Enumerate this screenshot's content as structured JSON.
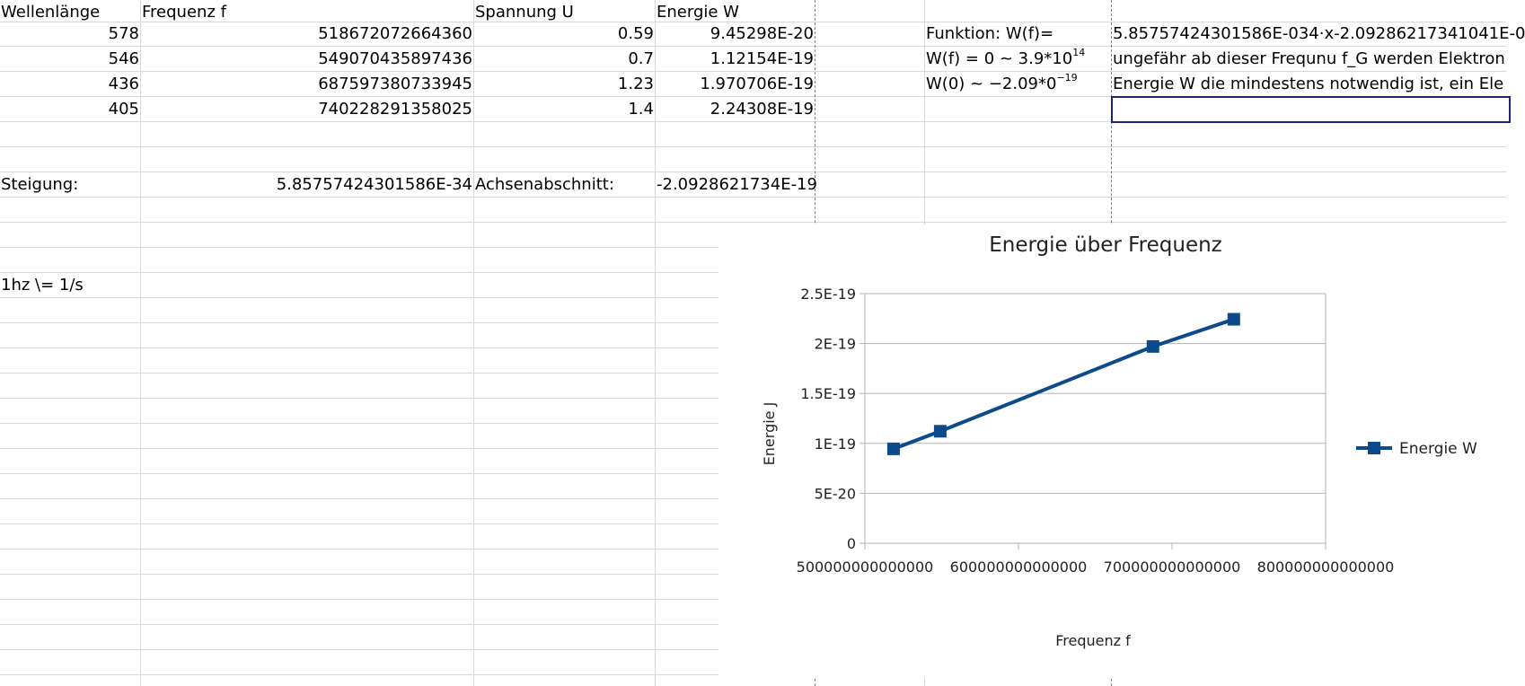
{
  "headers": {
    "col_a": "Wellenlänge",
    "col_b": "Frequenz f",
    "col_c": "Spannung U",
    "col_d": "Energie W"
  },
  "rows": [
    {
      "wavelength": "578",
      "frequency": "518672072664360",
      "voltage": "0.59",
      "energy": "9.45298E-20"
    },
    {
      "wavelength": "546",
      "frequency": "549070435897436",
      "voltage": "0.7",
      "energy": "1.12154E-19"
    },
    {
      "wavelength": "436",
      "frequency": "687597380733945",
      "voltage": "1.23",
      "energy": "1.970706E-19"
    },
    {
      "wavelength": "405",
      "frequency": "740228291358025",
      "voltage": "1.4",
      "energy": "2.24308E-19"
    }
  ],
  "regression": {
    "slope_label": "Steigung:",
    "slope_value": "5.85757424301586E-34",
    "intercept_label": "Achsenabschnitt:",
    "intercept_value": "-2.0928621734E-19"
  },
  "note": "1hz \\= 1/s",
  "side": {
    "function_label": "Funktion:  W(f)=",
    "function_value": "5.85757424301586E-034·x-2.09286217341041E-0",
    "zero_base": "W(f) = 0 ~ 3.9*10",
    "zero_exp": "14",
    "zero_text": "ungefähr ab dieser Frequnu f_G werden Elektron",
    "w0_base": "W(0) ~ −2.09*0",
    "w0_exp": "−19",
    "w0_text": "Energie W die mindestens notwendig ist, ein Ele"
  },
  "chart_data": {
    "type": "line",
    "title": "Energie über Frequenz",
    "xlabel": "Frequenz f",
    "ylabel": "Energie J",
    "xlim": [
      500000000000000,
      800000000000000
    ],
    "ylim": [
      0,
      2.5e-19
    ],
    "x_ticks": [
      500000000000000,
      600000000000000,
      700000000000000,
      800000000000000
    ],
    "x_tick_labels": [
      "500000000000000",
      "600000000000000",
      "700000000000000",
      "800000000000000"
    ],
    "y_ticks": [
      0,
      5e-20,
      1e-19,
      1.5e-19,
      2e-19,
      2.5e-19
    ],
    "y_tick_labels": [
      "0",
      "5E-20",
      "1E-19",
      "1.5E-19",
      "2E-19",
      "2.5E-19"
    ],
    "grid": true,
    "legend_position": "right",
    "series": [
      {
        "name": "Energie W",
        "color": "#0d4a8c",
        "x": [
          518672072664360,
          549070435897436,
          687597380733945,
          740228291358025
        ],
        "y": [
          9.45298e-20,
          1.12154e-19,
          1.970706e-19,
          2.24308e-19
        ]
      }
    ]
  }
}
